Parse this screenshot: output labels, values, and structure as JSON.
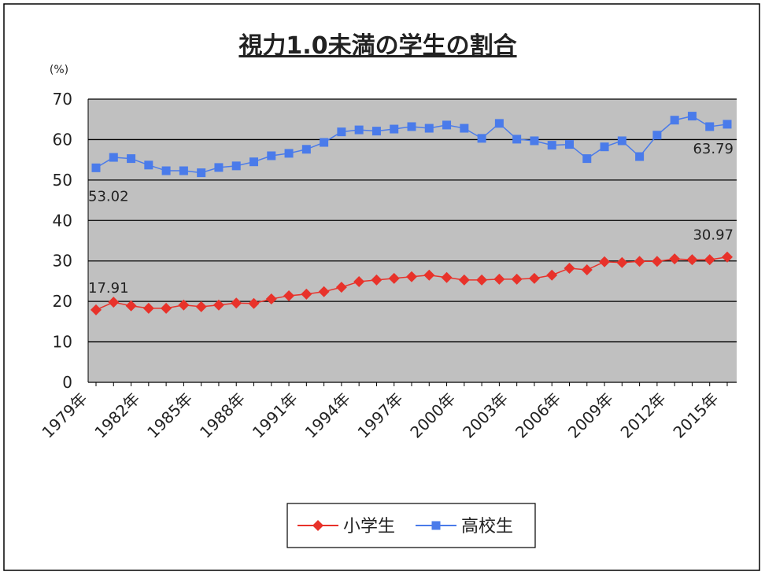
{
  "chart_data": {
    "type": "line",
    "title": "視力1.0未満の学生の割合",
    "y_unit": "(%)",
    "categories": [
      "1979年",
      null,
      null,
      "1982年",
      null,
      null,
      "1985年",
      null,
      null,
      "1988年",
      null,
      null,
      "1991年",
      null,
      null,
      "1994年",
      null,
      null,
      "1997年",
      null,
      null,
      "2000年",
      null,
      null,
      "2003年",
      null,
      null,
      "2006年",
      null,
      null,
      "2009年",
      null,
      null,
      "2012年",
      null,
      null,
      "2015年"
    ],
    "series": [
      {
        "name": "小学生",
        "color": "#e8322a",
        "marker": "diamond",
        "values": [
          17.91,
          19.8,
          18.9,
          18.3,
          18.3,
          19.1,
          18.7,
          19.1,
          19.6,
          19.5,
          20.6,
          21.4,
          21.8,
          22.4,
          23.5,
          24.9,
          25.3,
          25.7,
          26.1,
          26.5,
          25.9,
          25.3,
          25.3,
          25.5,
          25.5,
          25.7,
          26.5,
          28.2,
          27.8,
          29.8,
          29.6,
          29.9,
          29.9,
          30.5,
          30.3,
          30.3,
          30.97
        ]
      },
      {
        "name": "高校生",
        "color": "#4a7bea",
        "marker": "square",
        "values": [
          53.02,
          55.6,
          55.3,
          53.7,
          52.3,
          52.3,
          51.8,
          53.1,
          53.5,
          54.5,
          56.0,
          56.6,
          57.6,
          59.3,
          61.9,
          62.4,
          62.1,
          62.6,
          63.2,
          62.8,
          63.6,
          62.8,
          60.3,
          64.0,
          60.1,
          59.7,
          58.6,
          58.8,
          55.3,
          58.2,
          59.7,
          55.8,
          61.1,
          64.8,
          65.8,
          63.2,
          63.79
        ]
      }
    ],
    "ylim": [
      0,
      70
    ],
    "yticks": [
      0,
      10,
      20,
      30,
      40,
      50,
      60,
      70
    ],
    "grid": true,
    "legend": "bottom"
  }
}
